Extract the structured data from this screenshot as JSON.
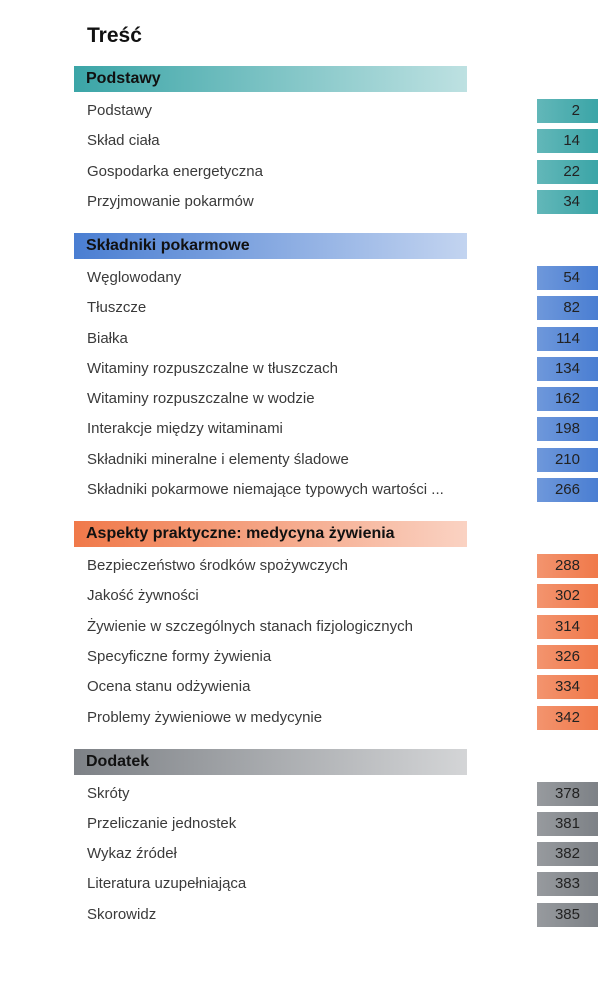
{
  "title": "Treść",
  "sections": [
    {
      "title": "Podstawy",
      "color": "#3ba5a7",
      "entries": [
        {
          "label": "Podstawy",
          "page": "2"
        },
        {
          "label": "Skład ciała",
          "page": "14"
        },
        {
          "label": "Gospodarka energetyczna",
          "page": "22"
        },
        {
          "label": "Przyjmowanie pokarmów",
          "page": "34"
        }
      ]
    },
    {
      "title": "Składniki pokarmowe",
      "color": "#4a7ed2",
      "entries": [
        {
          "label": "Węglowodany",
          "page": "54"
        },
        {
          "label": "Tłuszcze",
          "page": "82"
        },
        {
          "label": "Białka",
          "page": "114"
        },
        {
          "label": "Witaminy rozpuszczalne w tłuszczach",
          "page": "134"
        },
        {
          "label": "Witaminy rozpuszczalne w wodzie",
          "page": "162"
        },
        {
          "label": "Interakcje między witaminami",
          "page": "198"
        },
        {
          "label": "Składniki mineralne i elementy śladowe",
          "page": "210"
        },
        {
          "label": "Składniki pokarmowe niemające typowych wartości ...",
          "page": "266"
        }
      ]
    },
    {
      "title": "Aspekty praktyczne: medycyna żywienia",
      "color": "#f0794a",
      "entries": [
        {
          "label": "Bezpieczeństwo środków spożywczych",
          "page": "288"
        },
        {
          "label": "Jakość żywności",
          "page": "302"
        },
        {
          "label": "Żywienie w szczególnych stanach fizjologicznych",
          "page": "314"
        },
        {
          "label": "Specyficzne formy żywienia",
          "page": "326"
        },
        {
          "label": "Ocena stanu odżywienia",
          "page": "334"
        },
        {
          "label": "Problemy żywieniowe w medycynie",
          "page": "342"
        }
      ]
    },
    {
      "title": "Dodatek",
      "color": "#7d8186",
      "entries": [
        {
          "label": "Skróty",
          "page": "378"
        },
        {
          "label": "Przeliczanie jednostek",
          "page": "381"
        },
        {
          "label": "Wykaz źródeł",
          "page": "382"
        },
        {
          "label": "Literatura uzupełniająca",
          "page": "383"
        },
        {
          "label": "Skorowidz",
          "page": "385"
        }
      ]
    }
  ]
}
